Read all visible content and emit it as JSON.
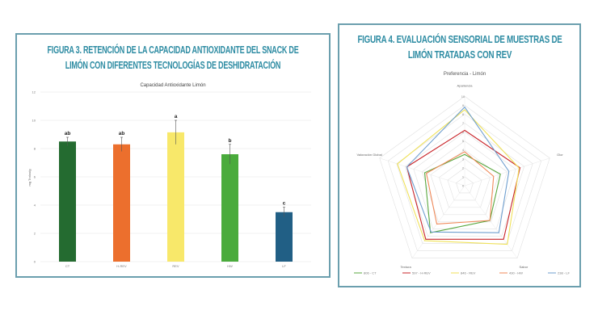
{
  "figure3": {
    "heading_line1": "FIGURA 3. RETENCIÓN DE LA CAPACIDAD ANTIOXIDANTE DEL SNACK DE",
    "heading_line2": "LIMÓN CON DIFERENTES TECNOLOGÍAS DE DESHIDRATACIÓN"
  },
  "figure4": {
    "heading_line1": "FIGURA 4. EVALUACIÓN SENSORIAL DE MUESTRAS DE",
    "heading_line2": "LIMÓN TRATADAS CON REV"
  },
  "chart_data": [
    {
      "type": "bar",
      "title": "Capacidad Antioxidante Limón",
      "ylabel": "mg Trolox/g",
      "xlabel": "",
      "categories": [
        "CT",
        "H-REV",
        "REV",
        "HW",
        "LF"
      ],
      "values": [
        8.5,
        8.3,
        9.15,
        7.6,
        3.5
      ],
      "errors": [
        0.3,
        0.5,
        0.85,
        0.7,
        0.35
      ],
      "significance_labels": [
        "ab",
        "ab",
        "a",
        "b",
        "c"
      ],
      "colors": [
        "#246b30",
        "#ec6f2d",
        "#f8e86a",
        "#4aab3c",
        "#215f85"
      ],
      "ylim": [
        0,
        12
      ],
      "yticks": [
        "0",
        "2",
        "4",
        "6",
        "8",
        "10",
        "12"
      ],
      "grid": true
    },
    {
      "type": "radar",
      "title": "Preferencia - Limón",
      "axes": [
        "Apariencia",
        "Olor",
        "Sabor",
        "Textura",
        "Valoración Global"
      ],
      "rlim": [
        0,
        10
      ],
      "rticks": [
        "0",
        "1",
        "2",
        "3",
        "4",
        "5",
        "6",
        "7",
        "8",
        "9",
        "10"
      ],
      "legend_position": "bottom",
      "series": [
        {
          "name": "806 - CT",
          "color": "#5aa83f",
          "values": [
            3.5,
            4.2,
            4.8,
            6.5,
            4.7
          ]
        },
        {
          "name": "597 - H-REV",
          "color": "#c8252a",
          "values": [
            6.2,
            6.5,
            7.4,
            7.4,
            6.8
          ]
        },
        {
          "name": "846 - REV",
          "color": "#f0e25a",
          "values": [
            8.5,
            6.4,
            8.1,
            7.6,
            7.9
          ]
        },
        {
          "name": "430 - HW",
          "color": "#f08a5a",
          "values": [
            3.8,
            3.4,
            4.8,
            5.3,
            4.5
          ]
        },
        {
          "name": "238 - LF",
          "color": "#6f9fcf",
          "values": [
            8.8,
            5.2,
            6.5,
            6.4,
            6.8
          ]
        }
      ]
    }
  ]
}
